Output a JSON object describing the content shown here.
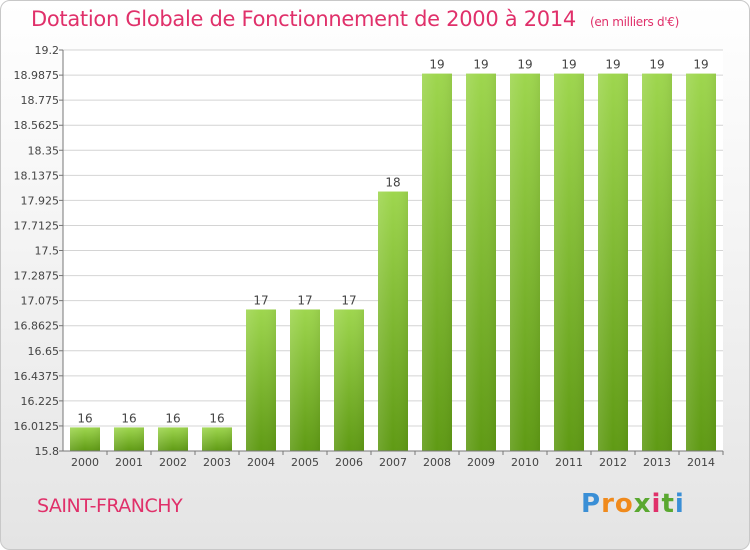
{
  "header": {
    "title": "Dotation Globale de Fonctionnement de 2000 à 2014",
    "subtitle": "(en milliers d'€)"
  },
  "footer": {
    "commune": "SAINT-FRANCHY",
    "logo_letters": [
      "P",
      "r",
      "o",
      "x",
      "i",
      "t",
      "i"
    ]
  },
  "colors": {
    "title": "#e0306a",
    "bar_top": "#9ed64e",
    "bar_bottom": "#5f9a14",
    "grid": "#d4d4d4"
  },
  "chart_data": {
    "type": "bar",
    "categories": [
      "2000",
      "2001",
      "2002",
      "2003",
      "2004",
      "2005",
      "2006",
      "2007",
      "2008",
      "2009",
      "2010",
      "2011",
      "2012",
      "2013",
      "2014"
    ],
    "values": [
      16,
      16,
      16,
      16,
      17,
      17,
      17,
      18,
      19,
      19,
      19,
      19,
      19,
      19,
      19
    ],
    "data_labels": [
      "16",
      "16",
      "16",
      "16",
      "17",
      "17",
      "17",
      "18",
      "19",
      "19",
      "19",
      "19",
      "19",
      "19",
      "19"
    ],
    "plotted_values": [
      16.0,
      16.0,
      16.0,
      16.0,
      17.0,
      17.0,
      17.0,
      18.0,
      19.0,
      19.0,
      19.0,
      19.0,
      19.0,
      19.0,
      19.0
    ],
    "ylim": [
      15.8,
      19.2
    ],
    "yticks": [
      15.8,
      16.0125,
      16.225,
      16.4375,
      16.65,
      16.8625,
      17.075,
      17.2875,
      17.5,
      17.7125,
      17.925,
      18.1375,
      18.35,
      18.5625,
      18.775,
      18.9875,
      19.2
    ],
    "ytick_labels": [
      "15.8",
      "16.0125",
      "16.225",
      "16.4375",
      "16.65",
      "16.8625",
      "17.075",
      "17.2875",
      "17.5",
      "17.7125",
      "17.925",
      "18.1375",
      "18.35",
      "18.5625",
      "18.775",
      "18.9875",
      "19.2"
    ],
    "grid": true,
    "title": "Dotation Globale de Fonctionnement de 2000 à 2014",
    "xlabel": "",
    "ylabel": ""
  }
}
